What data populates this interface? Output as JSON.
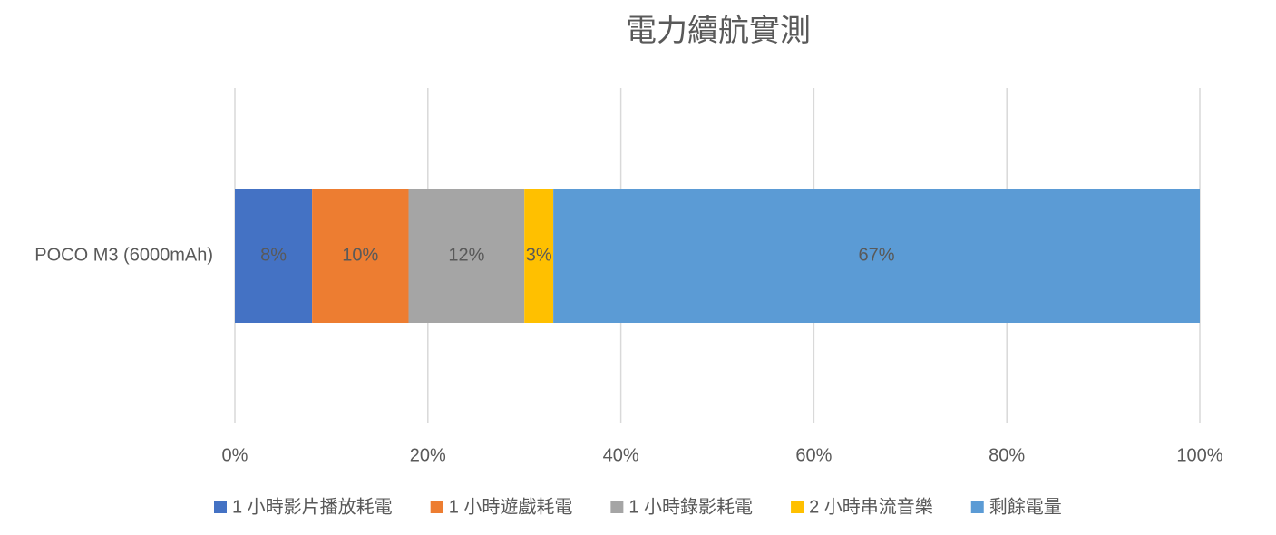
{
  "chart_data": {
    "type": "stacked-bar-horizontal",
    "title": "電力續航實測",
    "categories": [
      "POCO M3 (6000mAh)"
    ],
    "series": [
      {
        "name": "1 小時影片播放耗電",
        "color": "#4472c4",
        "values": [
          8
        ],
        "value_labels": [
          "8%"
        ]
      },
      {
        "name": "1 小時遊戲耗電",
        "color": "#ed7d31",
        "values": [
          10
        ],
        "value_labels": [
          "10%"
        ]
      },
      {
        "name": "1 小時錄影耗電",
        "color": "#a5a5a5",
        "values": [
          12
        ],
        "value_labels": [
          "12%"
        ]
      },
      {
        "name": "2 小時串流音樂",
        "color": "#ffc000",
        "values": [
          3
        ],
        "value_labels": [
          "3%"
        ]
      },
      {
        "name": "剩餘電量",
        "color": "#5b9bd5",
        "values": [
          67
        ],
        "value_labels": [
          "67%"
        ]
      }
    ],
    "xlim": [
      0,
      100
    ],
    "xticks": [
      {
        "value": 0,
        "label": "0%"
      },
      {
        "value": 20,
        "label": "20%"
      },
      {
        "value": 40,
        "label": "40%"
      },
      {
        "value": 60,
        "label": "60%"
      },
      {
        "value": 80,
        "label": "80%"
      },
      {
        "value": 100,
        "label": "100%"
      }
    ],
    "grid": true,
    "legend": "bottom"
  }
}
